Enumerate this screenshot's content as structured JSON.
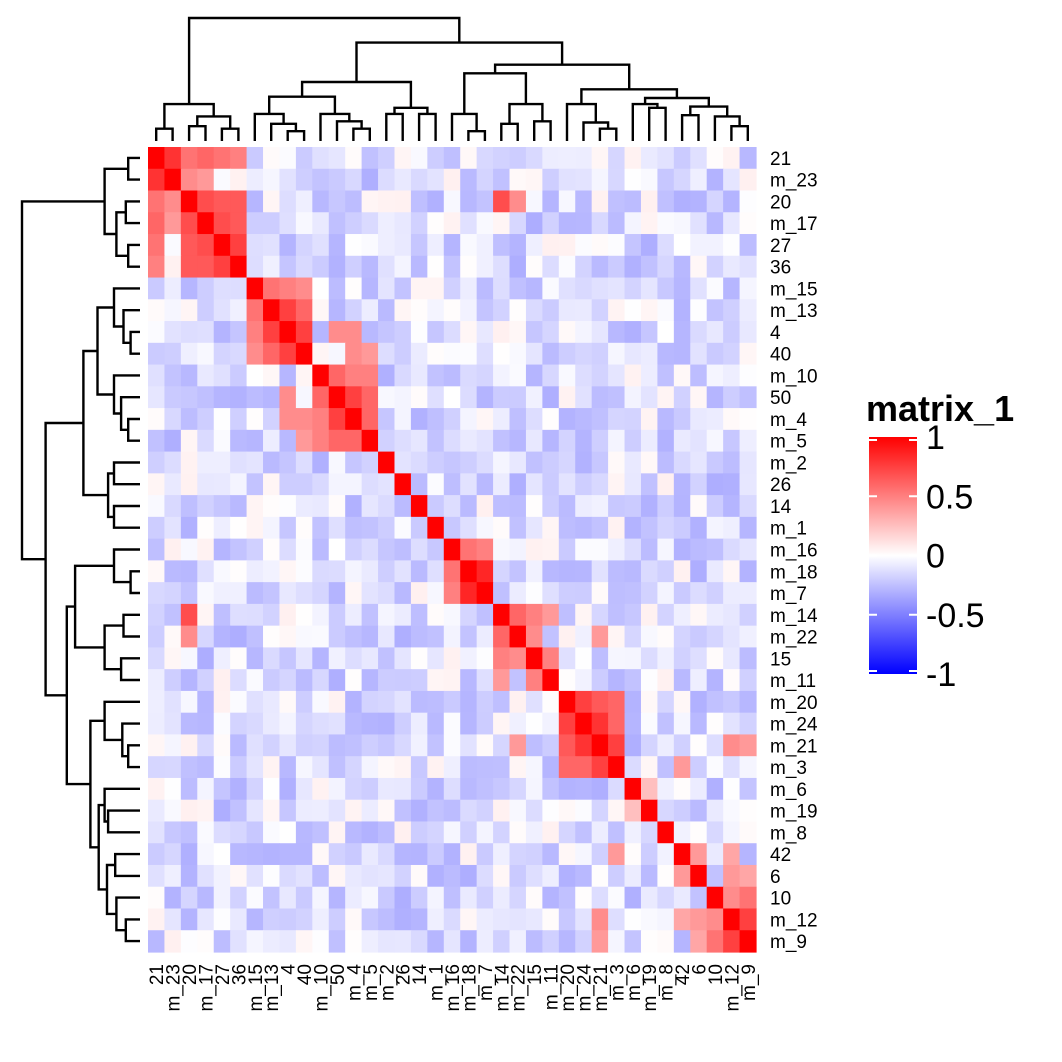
{
  "chart_data": {
    "type": "heatmap",
    "title": "",
    "legend": {
      "title": "matrix_1",
      "placement": "right",
      "ticks": [
        "1",
        "0.5",
        "0",
        "-0.5",
        "-1"
      ],
      "tick_values": [
        1,
        0.5,
        0,
        -0.5,
        -1
      ],
      "range": [
        -1,
        1
      ],
      "colors": {
        "low": "#0000ff",
        "mid": "#ffffff",
        "high": "#ff0000"
      }
    },
    "labels": [
      "21",
      "m_23",
      "20",
      "m_17",
      "27",
      "36",
      "m_15",
      "m_13",
      "4",
      "40",
      "m_10",
      "50",
      "m_4",
      "m_5",
      "m_2",
      "26",
      "14",
      "m_1",
      "m_16",
      "m_18",
      "m_7",
      "m_14",
      "m_22",
      "15",
      "m_11",
      "m_20",
      "m_24",
      "m_21",
      "m_3",
      "m_6",
      "m_19",
      "m_8",
      "42",
      "6",
      "10",
      "m_12",
      "m_9"
    ],
    "row_labels": [
      "21",
      "m_23",
      "20",
      "m_17",
      "27",
      "36",
      "m_15",
      "m_13",
      "4",
      "40",
      "m_10",
      "50",
      "m_4",
      "m_5",
      "m_2",
      "26",
      "14",
      "m_1",
      "m_16",
      "m_18",
      "m_7",
      "m_14",
      "m_22",
      "15",
      "m_11",
      "m_20",
      "m_24",
      "m_21",
      "m_3",
      "m_6",
      "m_19",
      "m_8",
      "42",
      "6",
      "10",
      "m_12",
      "m_9"
    ],
    "column_labels": [
      "21",
      "m_23",
      "20",
      "m_17",
      "27",
      "36",
      "m_15",
      "m_13",
      "4",
      "40",
      "m_10",
      "50",
      "m_4",
      "m_5",
      "m_2",
      "26",
      "14",
      "m_1",
      "m_16",
      "m_18",
      "m_7",
      "m_14",
      "m_22",
      "15",
      "m_11",
      "m_20",
      "m_24",
      "m_21",
      "m_3",
      "m_6",
      "m_19",
      "m_8",
      "42",
      "6",
      "10",
      "m_12",
      "m_9"
    ],
    "strong_pairs": [
      [
        "21",
        "m_23",
        0.8
      ],
      [
        "21",
        "20",
        0.55
      ],
      [
        "21",
        "m_17",
        0.6
      ],
      [
        "21",
        "27",
        0.55
      ],
      [
        "21",
        "36",
        0.5
      ],
      [
        "m_23",
        "20",
        0.45
      ],
      [
        "m_23",
        "m_17",
        0.4
      ],
      [
        "20",
        "m_17",
        0.7
      ],
      [
        "20",
        "27",
        0.65
      ],
      [
        "20",
        "36",
        0.65
      ],
      [
        "20",
        "m_14",
        0.7
      ],
      [
        "20",
        "m_22",
        0.45
      ],
      [
        "m_17",
        "27",
        0.7
      ],
      [
        "m_17",
        "36",
        0.65
      ],
      [
        "27",
        "36",
        0.75
      ],
      [
        "m_15",
        "m_13",
        0.55
      ],
      [
        "m_15",
        "4",
        0.5
      ],
      [
        "m_15",
        "40",
        0.45
      ],
      [
        "m_13",
        "4",
        0.75
      ],
      [
        "m_13",
        "40",
        0.6
      ],
      [
        "4",
        "40",
        0.75
      ],
      [
        "4",
        "50",
        0.45
      ],
      [
        "4",
        "m_4",
        0.45
      ],
      [
        "40",
        "m_4",
        0.45
      ],
      [
        "40",
        "m_5",
        0.4
      ],
      [
        "m_10",
        "50",
        0.6
      ],
      [
        "m_10",
        "m_4",
        0.5
      ],
      [
        "m_10",
        "m_5",
        0.5
      ],
      [
        "50",
        "m_4",
        0.75
      ],
      [
        "50",
        "m_5",
        0.6
      ],
      [
        "m_4",
        "m_5",
        0.6
      ],
      [
        "m_16",
        "m_18",
        0.55
      ],
      [
        "m_16",
        "m_7",
        0.5
      ],
      [
        "m_18",
        "m_7",
        0.85
      ],
      [
        "m_14",
        "m_22",
        0.6
      ],
      [
        "m_14",
        "15",
        0.5
      ],
      [
        "m_14",
        "m_11",
        0.4
      ],
      [
        "m_22",
        "15",
        0.45
      ],
      [
        "m_22",
        "m_21",
        0.4
      ],
      [
        "15",
        "m_11",
        0.5
      ],
      [
        "m_20",
        "m_24",
        0.75
      ],
      [
        "m_20",
        "m_21",
        0.65
      ],
      [
        "m_20",
        "m_3",
        0.6
      ],
      [
        "m_24",
        "m_21",
        0.8
      ],
      [
        "m_24",
        "m_3",
        0.6
      ],
      [
        "m_21",
        "m_3",
        0.75
      ],
      [
        "m_21",
        "m_12",
        0.45
      ],
      [
        "m_21",
        "m_9",
        0.4
      ],
      [
        "m_6",
        "m_19",
        0.25
      ],
      [
        "42",
        "6",
        0.4
      ],
      [
        "42",
        "m_3",
        0.4
      ],
      [
        "42",
        "m_12",
        0.35
      ],
      [
        "6",
        "m_12",
        0.4
      ],
      [
        "6",
        "m_9",
        0.35
      ],
      [
        "10",
        "m_12",
        0.45
      ],
      [
        "10",
        "m_9",
        0.55
      ],
      [
        "m_12",
        "m_9",
        0.75
      ]
    ]
  }
}
